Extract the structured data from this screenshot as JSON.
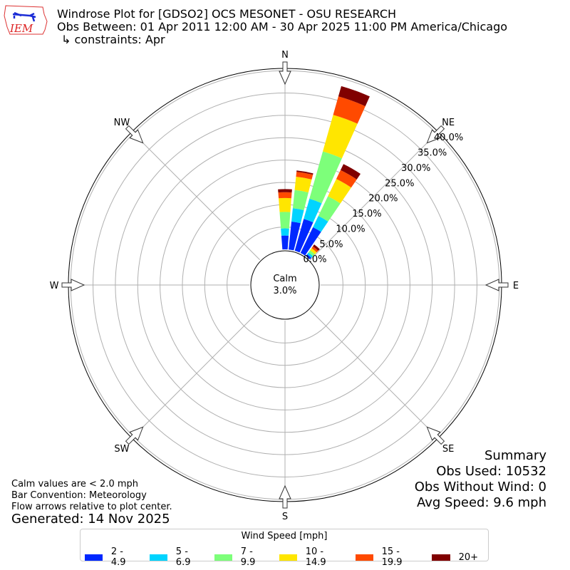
{
  "header": {
    "logo_text": "IEM",
    "title": "Windrose Plot for [GDSO2] OCS MESONET - OSU RESEARCH",
    "subtitle": "Obs Between: 01 Apr 2011 12:00 AM - 30 Apr 2025 11:00 PM America/Chicago",
    "constraints": "↳ constraints: Apr"
  },
  "chart_data": {
    "type": "windrose",
    "direction_labels": [
      "N",
      "NE",
      "E",
      "SE",
      "S",
      "SW",
      "W",
      "NW"
    ],
    "radial_tick_labels": [
      "0.0%",
      "5.0%",
      "10.0%",
      "15.0%",
      "20.0%",
      "25.0%",
      "30.0%",
      "35.0%",
      "40.0%"
    ],
    "rlim": [
      0,
      40
    ],
    "calm_label": "Calm",
    "calm_value": "3.0%",
    "direction_bin_width_deg": 10,
    "directions_deg": [
      0,
      10,
      20,
      30,
      40
    ],
    "legend_title": "Wind Speed [mph]",
    "series": [
      {
        "name": "2 - 4.9",
        "color": "#0028ff",
        "values": [
          3.1,
          6.3,
          7.4,
          6.4,
          0.5
        ]
      },
      {
        "name": "5 - 6.9",
        "color": "#00d4ff",
        "values": [
          1.6,
          3.0,
          4.7,
          2.8,
          0.5
        ]
      },
      {
        "name": "7 - 9.9",
        "color": "#7dff7a",
        "values": [
          3.7,
          4.1,
          11.0,
          4.9,
          0.6
        ]
      },
      {
        "name": "10 - 14.9",
        "color": "#ffe600",
        "values": [
          3.1,
          3.0,
          8.5,
          4.3,
          0.6
        ]
      },
      {
        "name": "15 - 19.9",
        "color": "#ff4a00",
        "values": [
          1.3,
          1.1,
          4.3,
          2.2,
          0.5
        ]
      },
      {
        "name": "20+",
        "color": "#800000",
        "values": [
          0.7,
          0.3,
          2.4,
          1.5,
          0.5
        ]
      }
    ],
    "grid": true,
    "legend_placement": "bottom"
  },
  "summary": {
    "title": "Summary",
    "obs_used": "Obs Used: 10532",
    "obs_without_wind": "Obs Without Wind: 0",
    "avg_speed": "Avg Speed: 9.6 mph"
  },
  "notes": {
    "calm": "Calm values are < 2.0 mph",
    "convention": "Bar Convention: Meteorology",
    "flow": "Flow arrows relative to plot center.",
    "generated": "Generated: 14 Nov 2025"
  }
}
